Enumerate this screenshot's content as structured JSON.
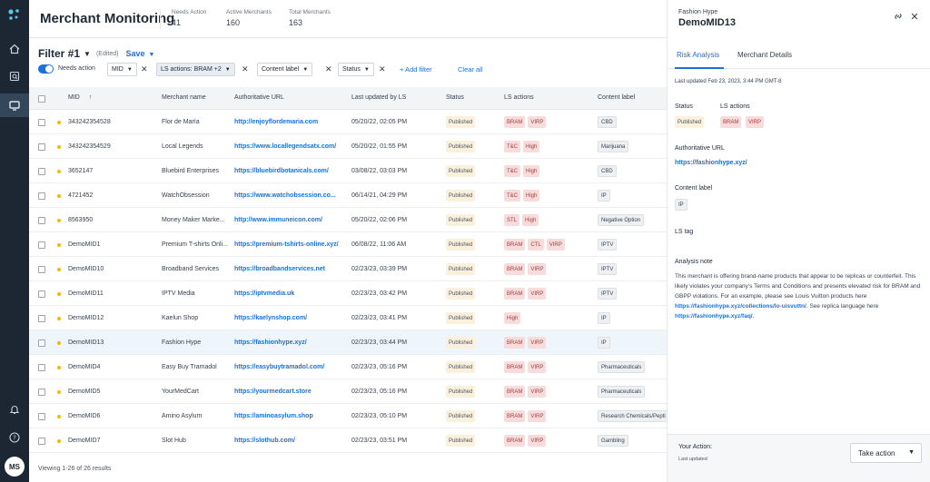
{
  "rail": {
    "avatar_initials": "MS"
  },
  "header": {
    "title": "Merchant Monitoring",
    "stats": [
      {
        "label": "Needs Action",
        "value": "41"
      },
      {
        "label": "Active Merchants",
        "value": "160"
      },
      {
        "label": "Total Merchants",
        "value": "163"
      }
    ]
  },
  "filterbar": {
    "name": "Filter #1",
    "edited": "(Edited)",
    "save": "Save"
  },
  "filters": {
    "toggle_label": "Needs action",
    "chips": [
      "MID",
      "LS actions: BRAM +2",
      "Content label",
      "Status"
    ],
    "add_filter": "Add filter",
    "clear_all": "Clear all"
  },
  "table": {
    "columns": [
      "MID",
      "Merchant name",
      "Authoritative URL",
      "Last updated by LS",
      "Status",
      "LS actions",
      "Content label"
    ],
    "sort_arrow": "↑",
    "rows": [
      {
        "mid": "343242354528",
        "name": "Flor de María",
        "url": "http://enjoyflordemaria.com",
        "updated": "05/20/22, 02:05 PM",
        "status": "Published",
        "ls": [
          "BRAM",
          "VIRP"
        ],
        "label": "CBD"
      },
      {
        "mid": "343242354529",
        "name": "Local Legends",
        "url": "https://www.locallegendsatx.com/",
        "updated": "05/20/22, 01:55 PM",
        "status": "Published",
        "ls": [
          "T&C",
          "High"
        ],
        "label": "Marijuana"
      },
      {
        "mid": "3652147",
        "name": "Bluebird Enterprises",
        "url": "https://bluebirdbotanicals.com/",
        "updated": "03/08/22, 03:03 PM",
        "status": "Published",
        "ls": [
          "T&C",
          "High"
        ],
        "label": "CBD"
      },
      {
        "mid": "4721452",
        "name": "WatchObsession",
        "url": "https://www.watchobsession.co...",
        "updated": "06/14/21, 04:29 PM",
        "status": "Published",
        "ls": [
          "T&C",
          "High"
        ],
        "label": "IP"
      },
      {
        "mid": "8563950",
        "name": "Money Maker Marke...",
        "url": "http://www.immuneicon.com/",
        "updated": "05/20/22, 02:06 PM",
        "status": "Published",
        "ls": [
          "STL",
          "High"
        ],
        "label": "Negative Option"
      },
      {
        "mid": "DemoMID1",
        "name": "Premium T-shirts Onli...",
        "url": "https://premium-tshirts-online.xyz/",
        "updated": "06/08/22, 11:06 AM",
        "status": "Published",
        "ls": [
          "BRAM",
          "CTL",
          "VIRP"
        ],
        "label": "IPTV"
      },
      {
        "mid": "DemoMID10",
        "name": "Broadband Services",
        "url": "https://broadbandservices.net",
        "updated": "02/23/23, 03:39 PM",
        "status": "Published",
        "ls": [
          "BRAM",
          "VIRP"
        ],
        "label": "IPTV"
      },
      {
        "mid": "DemoMID11",
        "name": "IPTV Media",
        "url": "https://iptvmedia.uk",
        "updated": "02/23/23, 03:42 PM",
        "status": "Published",
        "ls": [
          "BRAM",
          "VIRP"
        ],
        "label": "IPTV"
      },
      {
        "mid": "DemoMID12",
        "name": "Kaelun Shop",
        "url": "https://kaelynshop.com/",
        "updated": "02/23/23, 03:41 PM",
        "status": "Published",
        "ls": [
          "High"
        ],
        "label": "IP"
      },
      {
        "mid": "DemoMID13",
        "name": "Fashion Hype",
        "url": "https://fashionhype.xyz/",
        "updated": "02/23/23, 03:44 PM",
        "status": "Published",
        "ls": [
          "BRAM",
          "VIRP"
        ],
        "label": "IP"
      },
      {
        "mid": "DemoMID4",
        "name": "Easy Buy Tramadol",
        "url": "https://easybuytramadol.com/",
        "updated": "02/23/23, 05:16 PM",
        "status": "Published",
        "ls": [
          "BRAM",
          "VIRP"
        ],
        "label": "Pharmaceuticals"
      },
      {
        "mid": "DemoMID5",
        "name": "YourMedCart",
        "url": "https://yourmedcart.store",
        "updated": "02/23/23, 05:16 PM",
        "status": "Published",
        "ls": [
          "BRAM",
          "VIRP"
        ],
        "label": "Pharmaceuticals"
      },
      {
        "mid": "DemoMID6",
        "name": "Amino Asylum",
        "url": "https://aminoasylum.shop",
        "updated": "02/23/23, 05:10 PM",
        "status": "Published",
        "ls": [
          "BRAM",
          "VIRP"
        ],
        "label": "Research Chemicals/Pepti"
      },
      {
        "mid": "DemoMID7",
        "name": "Slot Hub",
        "url": "https://slothub.com/",
        "updated": "02/23/23, 03:51 PM",
        "status": "Published",
        "ls": [
          "BRAM",
          "VIRP"
        ],
        "label": "Gambling"
      }
    ],
    "footer": "Viewing 1-26 of 26 results"
  },
  "panel": {
    "subtitle": "Fashion Hype",
    "title": "DemoMID13",
    "tabs": [
      "Risk Analysis",
      "Merchant Details"
    ],
    "last_updated": "Last updated Feb 23, 2023, 3:44 PM GMT-8",
    "status_label": "Status",
    "status_value": "Published",
    "ls_label": "LS actions",
    "ls_values": [
      "BRAM",
      "VIRP"
    ],
    "url_label": "Authoritative URL",
    "url_value": "https://fashionhype.xyz/",
    "content_label": "Content label",
    "content_value": "IP",
    "ls_tag_label": "LS tag",
    "analysis_label": "Analysis note",
    "analysis_text1": "This merchant is offering brand-name products that appear to be replicas or counterfeit. This likely violates your company's Terms and Conditions and presents elevated risk for BRAM and GBPP violations. For an example, please see Louis Vuitton products here ",
    "analysis_link1": "https://fashionhype.xyz/collections/lo-uisvuttn/",
    "analysis_text2": ". See replica language here ",
    "analysis_link2": "https://fashionhype.xyz/faq/",
    "analysis_text3": ".",
    "footer_label": "Your Action:",
    "footer_sub": "Last updated",
    "take_action": "Take action"
  }
}
